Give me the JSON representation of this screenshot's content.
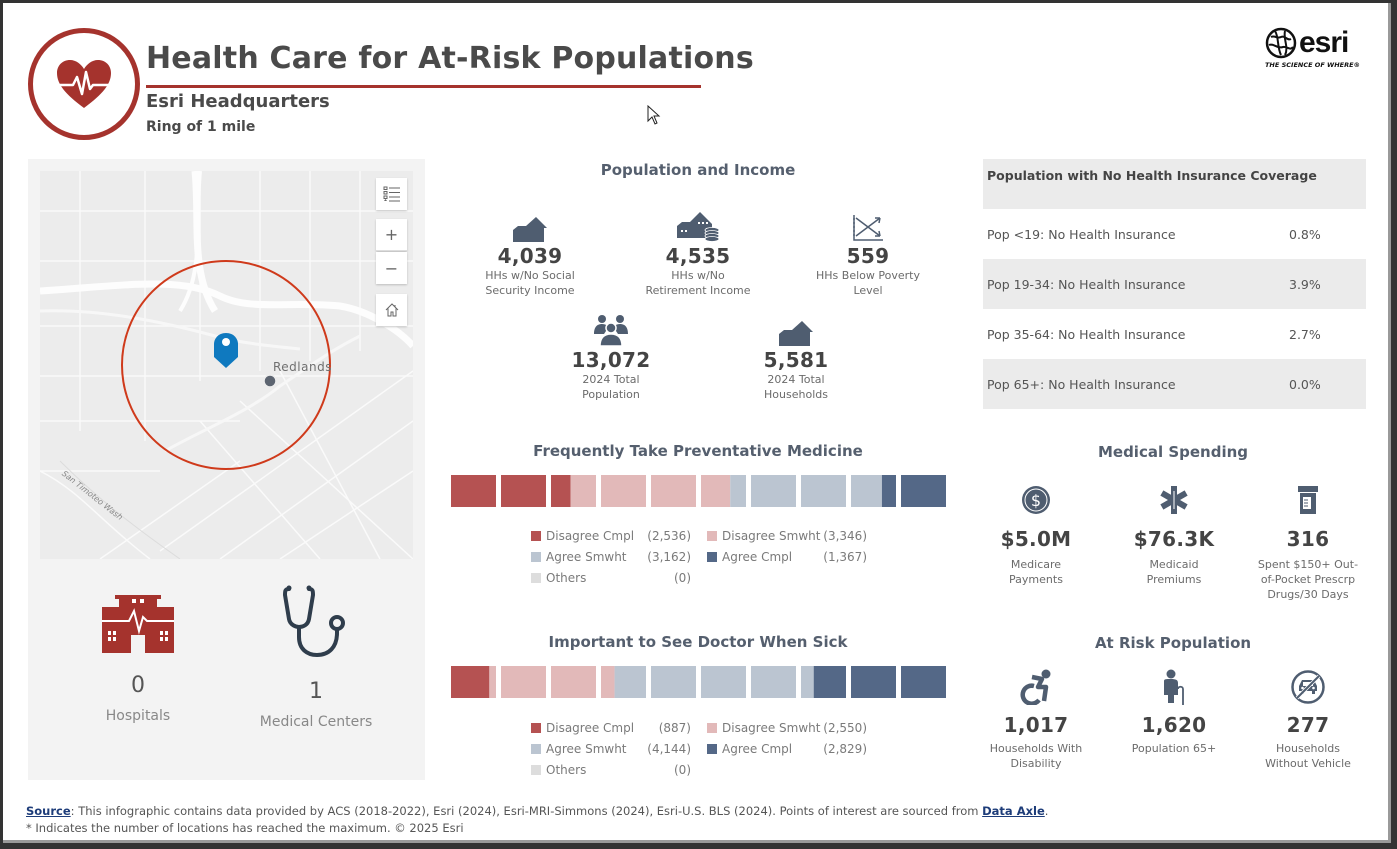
{
  "header": {
    "title": "Health Care for At-Risk Populations",
    "location": "Esri Headquarters",
    "ring": "Ring of 1 mile",
    "logo_word": "esri",
    "logo_tagline": "THE SCIENCE OF WHERE®"
  },
  "colors": {
    "brand_red": "#a5332d",
    "slate": "#4f5d70",
    "disagree_cmpl": "#b55252",
    "disagree_smwht": "#e2b9b9",
    "agree_smwht": "#bbc5d1",
    "agree_cmpl": "#546887",
    "others": "#dddddd"
  },
  "map": {
    "place_label": "Redlands",
    "wash_label": "San Timoteo Wash",
    "controls": [
      "layer-list",
      "zoom-in",
      "zoom-out",
      "home"
    ],
    "zoom_in_label": "+",
    "zoom_out_label": "−"
  },
  "poi": [
    {
      "value": "0",
      "label": "Hospitals",
      "icon": "hospital-icon"
    },
    {
      "value": "1",
      "label": "Medical Centers",
      "icon": "stethoscope-icon"
    }
  ],
  "population_income": {
    "title": "Population and Income",
    "stats": [
      {
        "value": "4,039",
        "label_line1": "HHs w/No Social",
        "label_line2": "Security Income",
        "icon": "house-icon"
      },
      {
        "value": "4,535",
        "label_line1": "HHs w/No",
        "label_line2": "Retirement Income",
        "icon": "house-coins-icon"
      },
      {
        "value": "559",
        "label_line1": "HHs Below Poverty",
        "label_line2": "Level",
        "icon": "chart-decline-icon"
      },
      {
        "value": "13,072",
        "label_line1": "2024 Total",
        "label_line2": "Population",
        "icon": "people-icon"
      },
      {
        "value": "5,581",
        "label_line1": "2024 Total",
        "label_line2": "Households",
        "icon": "house-icon"
      }
    ]
  },
  "chart_data": [
    {
      "type": "bar",
      "subtype": "pictograph-stacked",
      "title": "Frequently Take Preventative Medicine",
      "units": 10,
      "categories": [
        "Disagree Cmpl",
        "Disagree Smwht",
        "Agree Smwht",
        "Agree Cmpl",
        "Others"
      ],
      "values": [
        2536,
        3346,
        3162,
        1367,
        0
      ],
      "value_labels": [
        "(2,536)",
        "(3,346)",
        "(3,162)",
        "(1,367)",
        "(0)"
      ],
      "legend": "bottom"
    },
    {
      "type": "bar",
      "subtype": "pictograph-stacked",
      "title": "Important to See Doctor When Sick",
      "units": 10,
      "categories": [
        "Disagree Cmpl",
        "Disagree Smwht",
        "Agree Smwht",
        "Agree Cmpl",
        "Others"
      ],
      "values": [
        887,
        2550,
        4144,
        2829,
        0
      ],
      "value_labels": [
        "(887)",
        "(2,550)",
        "(4,144)",
        "(2,829)",
        "(0)"
      ],
      "legend": "bottom"
    }
  ],
  "insurance": {
    "title": "Population with No Health Insurance Coverage",
    "rows": [
      {
        "label": "Pop <19: No Health Insurance",
        "value": "0.8%"
      },
      {
        "label": "Pop 19-34: No Health Insurance",
        "value": "3.9%"
      },
      {
        "label": "Pop 35-64: No Health Insurance",
        "value": "2.7%"
      },
      {
        "label": "Pop 65+: No Health Insurance",
        "value": "0.0%"
      }
    ]
  },
  "medical_spending": {
    "title": "Medical Spending",
    "stats": [
      {
        "value": "$5.0M",
        "label_line1": "Medicare",
        "label_line2": "Payments",
        "label_line3": "",
        "icon": "dollar-coin-icon"
      },
      {
        "value": "$76.3K",
        "label_line1": "Medicaid",
        "label_line2": "Premiums",
        "label_line3": "",
        "icon": "star-of-life-icon"
      },
      {
        "value": "316",
        "label_line1": "Spent $150+ Out-",
        "label_line2": "of-Pocket Prescrp",
        "label_line3": "Drugs/30 Days",
        "icon": "pill-bottle-icon"
      }
    ]
  },
  "at_risk": {
    "title": "At Risk Population",
    "stats": [
      {
        "value": "1,017",
        "label_line1": "Households With",
        "label_line2": "Disability",
        "icon": "wheelchair-icon"
      },
      {
        "value": "1,620",
        "label_line1": "Population 65+",
        "label_line2": "",
        "icon": "elderly-person-icon"
      },
      {
        "value": "277",
        "label_line1": "Households",
        "label_line2": "Without Vehicle",
        "icon": "no-car-icon"
      }
    ]
  },
  "footer": {
    "source_link": "Source",
    "source_text": ": This infographic contains data provided by ACS (2018-2022), Esri (2024), Esri-MRI-Simmons (2024), Esri-U.S. BLS (2024). Points of interest are sourced from ",
    "data_link": "Data Axle",
    "period": ".",
    "note": "* Indicates the number of locations has reached the maximum. © 2025 Esri"
  }
}
